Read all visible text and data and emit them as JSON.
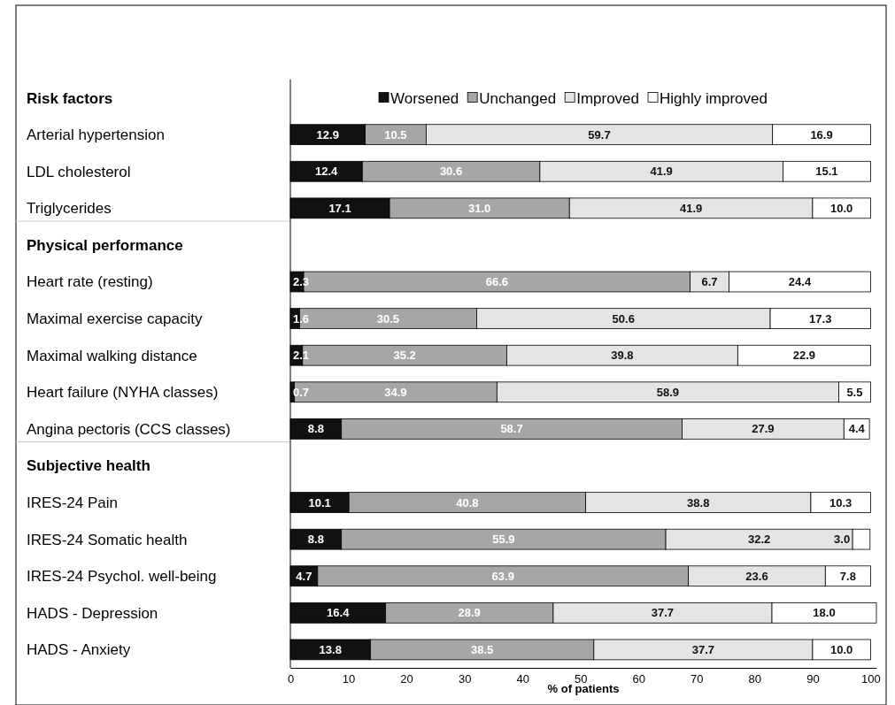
{
  "chart_data": {
    "type": "bar",
    "orientation": "horizontal",
    "stacked": true,
    "xlabel": "% of patients",
    "xlim": [
      0,
      101
    ],
    "xticks": [
      0,
      10,
      20,
      30,
      40,
      50,
      60,
      70,
      80,
      90,
      100
    ],
    "legend": "top",
    "grid": false,
    "categories": [
      "Risk factors",
      "Arterial hypertension",
      "LDL cholesterol",
      "Triglycerides",
      "Physical performance",
      "Heart rate (resting)",
      "Maximal exercise capacity",
      "Maximal walking distance",
      "Heart failure (NYHA classes)",
      "Angina pectoris (CCS classes)",
      "Subjective health",
      "IRES-24 Pain",
      "IRES-24 Somatic health",
      "IRES-24 Psychol. well-being",
      "HADS - Depression",
      "HADS - Anxiety"
    ],
    "series": [
      {
        "name": "Worsened",
        "color": "#111111",
        "values": [
          null,
          12.9,
          12.4,
          17.1,
          null,
          2.3,
          1.6,
          2.1,
          0.7,
          8.8,
          null,
          10.1,
          8.8,
          4.7,
          16.4,
          13.8
        ],
        "value_labels": [
          null,
          "12.9",
          "12.4",
          "17.1",
          null,
          "2.3",
          "1.6",
          "2.1",
          "0.7",
          "8.8",
          null,
          "10.1",
          "8.8",
          "4.7",
          "16.4",
          "13.8"
        ]
      },
      {
        "name": "Unchanged",
        "color": "#a6a6a6",
        "values": [
          null,
          10.5,
          30.6,
          31.0,
          null,
          66.6,
          30.5,
          35.2,
          34.9,
          58.7,
          null,
          40.8,
          55.9,
          63.9,
          28.9,
          38.5
        ],
        "value_labels": [
          null,
          "10.5",
          "30.6",
          "31.0",
          null,
          "66.6",
          "30.5",
          "35.2",
          "34.9",
          "58.7",
          null,
          "40.8",
          "55.9",
          "63.9",
          "28.9",
          "38.5"
        ]
      },
      {
        "name": "Improved",
        "color": "#e4e4e4",
        "values": [
          null,
          59.7,
          41.9,
          41.9,
          null,
          6.7,
          50.6,
          39.8,
          58.9,
          27.9,
          null,
          38.8,
          32.2,
          23.6,
          37.7,
          37.7
        ],
        "value_labels": [
          null,
          "59.7",
          "41.9",
          "41.9",
          null,
          "6.7",
          "50.6",
          "39.8",
          "58.9",
          "27.9",
          null,
          "38.8",
          "32.2",
          "23.6",
          "37.7",
          "37.7"
        ]
      },
      {
        "name": "Highly improved",
        "color": "#ffffff",
        "values": [
          null,
          16.9,
          15.1,
          10.0,
          null,
          24.4,
          17.3,
          22.9,
          5.5,
          4.4,
          null,
          10.3,
          3.0,
          7.8,
          18.0,
          10.0
        ],
        "value_labels": [
          null,
          "16.9",
          "15.1",
          "10.0",
          null,
          "24.4",
          "17.3",
          "22.9",
          "5.5",
          "4.4",
          null,
          "10.3",
          "3.0",
          "7.8",
          "18.0",
          "10.0"
        ]
      }
    ]
  }
}
